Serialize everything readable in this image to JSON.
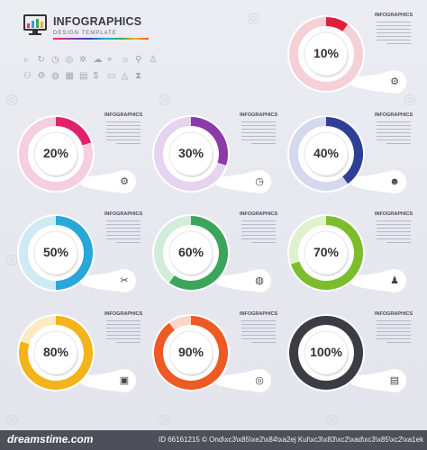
{
  "header": {
    "title": "INFOGRAPHICS",
    "subtitle": "DESIGN TEMPLATE"
  },
  "icon_set": [
    "search-icon",
    "refresh-icon",
    "clock-icon",
    "target-icon",
    "gear-icon",
    "cloud-icon",
    "map-pin-icon",
    "lightbulb-icon",
    "pin-icon",
    "person-icon",
    "people-icon",
    "settings-icon",
    "globe-icon",
    "calculator-icon",
    "document-icon",
    "dollar-icon",
    "cart-icon",
    "graduation-icon",
    "tie-icon"
  ],
  "cards": [
    {
      "percent": "10%",
      "value": 0.1,
      "color": "#e0203a",
      "tint": "#f5d0d6",
      "title": "INFOGRAPHICS",
      "icon": "gear-icon",
      "glyph": "⚙"
    },
    {
      "percent": "20%",
      "value": 0.2,
      "color": "#e0226c",
      "tint": "#f4cfe0",
      "title": "INFOGRAPHICS",
      "icon": "gear-icon",
      "glyph": "⚙"
    },
    {
      "percent": "30%",
      "value": 0.3,
      "color": "#8b3aaa",
      "tint": "#e5d3ef",
      "title": "INFOGRAPHICS",
      "icon": "clock-icon",
      "glyph": "◷"
    },
    {
      "percent": "40%",
      "value": 0.4,
      "color": "#2e3f96",
      "tint": "#d4d9ef",
      "title": "INFOGRAPHICS",
      "icon": "lightbulb-head-icon",
      "glyph": "☻"
    },
    {
      "percent": "50%",
      "value": 0.5,
      "color": "#2aa7d9",
      "tint": "#cfeaf5",
      "title": "INFOGRAPHICS",
      "icon": "dna-icon",
      "glyph": "✂"
    },
    {
      "percent": "60%",
      "value": 0.6,
      "color": "#3ba55c",
      "tint": "#d2ecd9",
      "title": "INFOGRAPHICS",
      "icon": "globe-icon",
      "glyph": "◍"
    },
    {
      "percent": "70%",
      "value": 0.7,
      "color": "#7cbd2e",
      "tint": "#e1f0cd",
      "title": "INFOGRAPHICS",
      "icon": "person-icon",
      "glyph": "♟"
    },
    {
      "percent": "80%",
      "value": 0.8,
      "color": "#f2b31b",
      "tint": "#fbeac2",
      "title": "INFOGRAPHICS",
      "icon": "briefcase-icon",
      "glyph": "▣"
    },
    {
      "percent": "90%",
      "value": 0.9,
      "color": "#ee5a23",
      "tint": "#fad6c6",
      "title": "INFOGRAPHICS",
      "icon": "target-icon",
      "glyph": "◎"
    },
    {
      "percent": "100%",
      "value": 1.0,
      "color": "#3c3c44",
      "tint": "#d4d4d8",
      "title": "INFOGRAPHICS",
      "icon": "report-icon",
      "glyph": "▤"
    }
  ],
  "footer": {
    "logo": "dreamstime.com",
    "id_text": "ID 66161215 © Ond\\xc3\\x85\\xe2\\x84\\xa2ej Kul\\xc3\\x83\\xc2\\xad\\xc3\\x85\\xc2\\xa1ek"
  }
}
